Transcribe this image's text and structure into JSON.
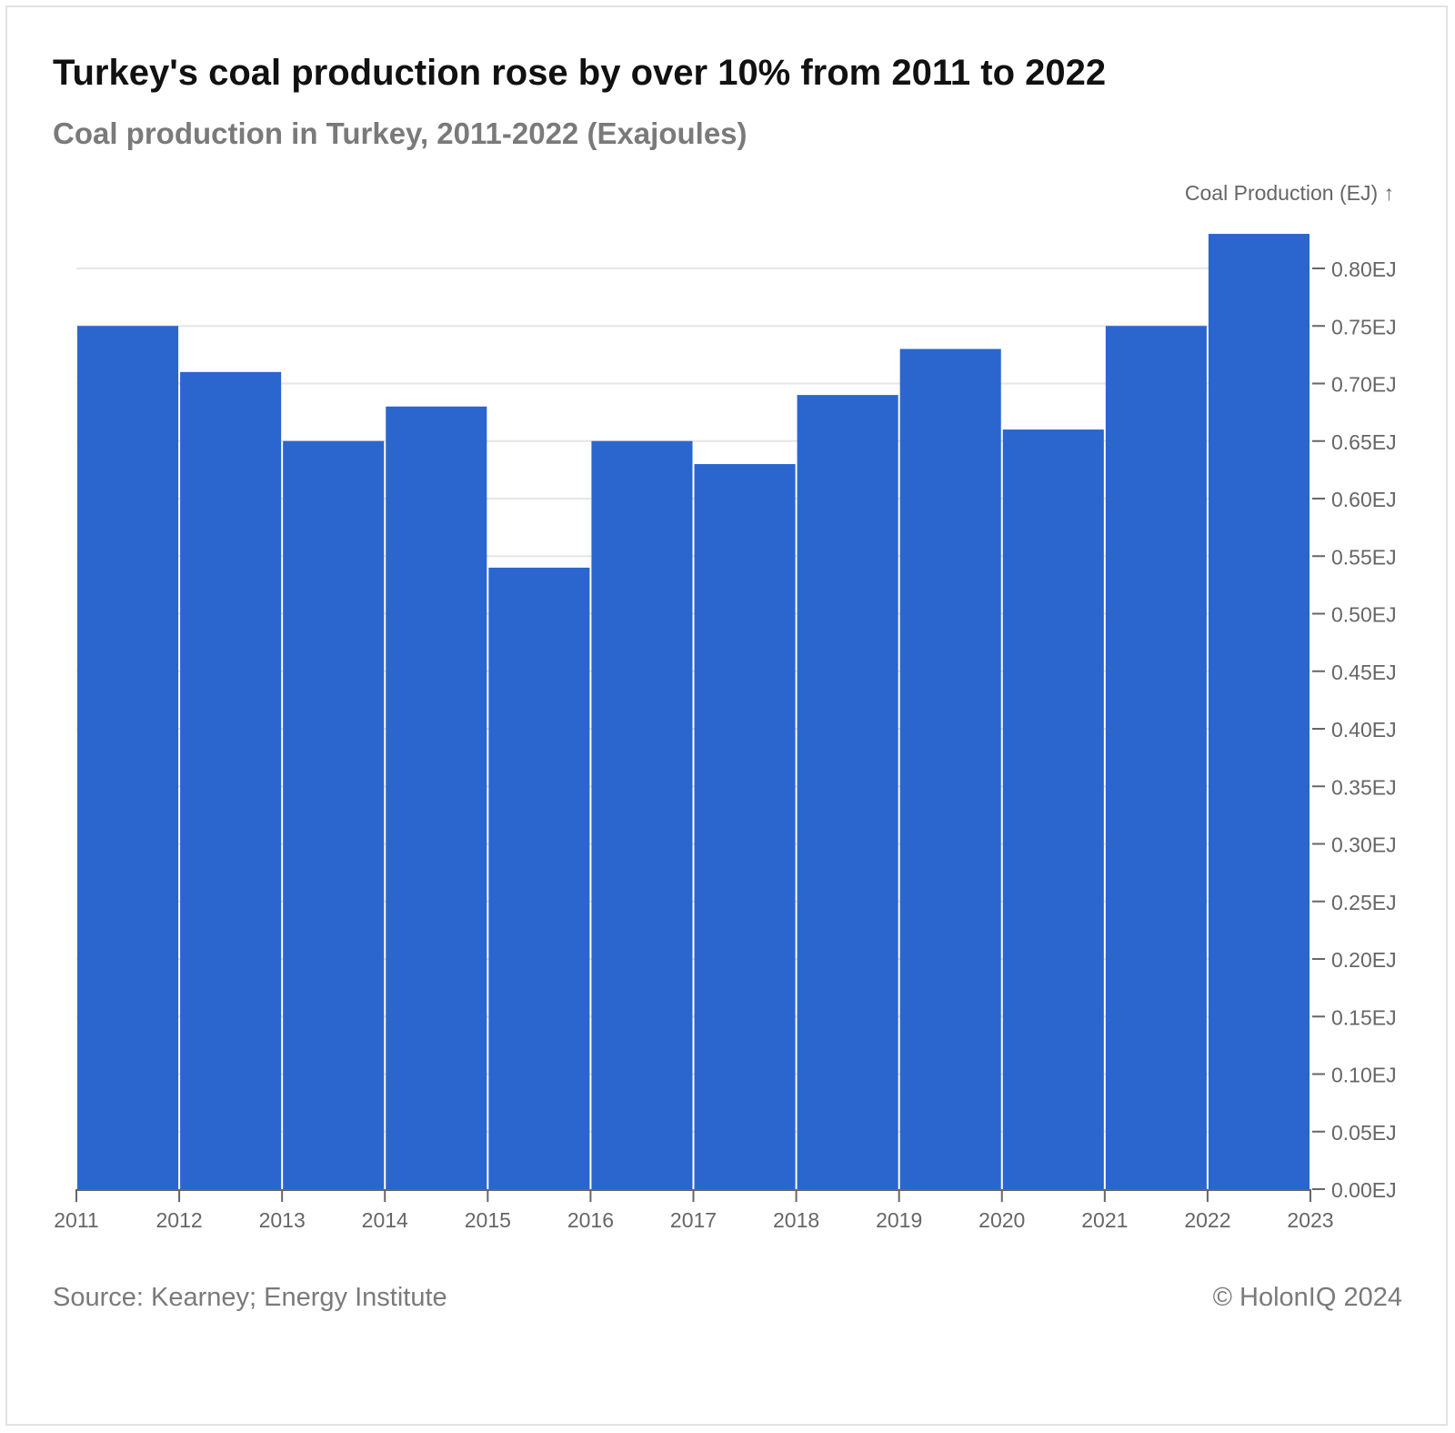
{
  "title": "Turkey's coal production rose by over 10% from 2011 to 2022",
  "subtitle": "Coal production in Turkey, 2011-2022 (Exajoules)",
  "source": "Source: Kearney; Energy Institute",
  "copyright": "© HolonIQ 2024",
  "colors": {
    "bar": "#2a66cd",
    "grid": "#e6e6e6",
    "axis": "#666666",
    "tick_text": "#666666"
  },
  "chart_data": {
    "type": "bar",
    "ylabel": "Coal Production (EJ) ↑",
    "ylim": [
      0,
      0.8
    ],
    "grid": true,
    "x_edges": [
      "2011",
      "2012",
      "2013",
      "2014",
      "2015",
      "2016",
      "2017",
      "2018",
      "2019",
      "2020",
      "2021",
      "2022",
      "2023"
    ],
    "categories": [
      "2011",
      "2012",
      "2013",
      "2014",
      "2015",
      "2016",
      "2017",
      "2018",
      "2019",
      "2020",
      "2021",
      "2022"
    ],
    "values": [
      0.75,
      0.71,
      0.65,
      0.68,
      0.54,
      0.65,
      0.63,
      0.69,
      0.73,
      0.66,
      0.75,
      0.83
    ],
    "y_ticks": [
      {
        "value": 0.0,
        "label": "0.00EJ"
      },
      {
        "value": 0.05,
        "label": "0.05EJ"
      },
      {
        "value": 0.1,
        "label": "0.10EJ"
      },
      {
        "value": 0.15,
        "label": "0.15EJ"
      },
      {
        "value": 0.2,
        "label": "0.20EJ"
      },
      {
        "value": 0.25,
        "label": "0.25EJ"
      },
      {
        "value": 0.3,
        "label": "0.30EJ"
      },
      {
        "value": 0.35,
        "label": "0.35EJ"
      },
      {
        "value": 0.4,
        "label": "0.40EJ"
      },
      {
        "value": 0.45,
        "label": "0.45EJ"
      },
      {
        "value": 0.5,
        "label": "0.50EJ"
      },
      {
        "value": 0.55,
        "label": "0.55EJ"
      },
      {
        "value": 0.6,
        "label": "0.60EJ"
      },
      {
        "value": 0.65,
        "label": "0.65EJ"
      },
      {
        "value": 0.7,
        "label": "0.70EJ"
      },
      {
        "value": 0.75,
        "label": "0.75EJ"
      },
      {
        "value": 0.8,
        "label": "0.80EJ"
      }
    ]
  }
}
